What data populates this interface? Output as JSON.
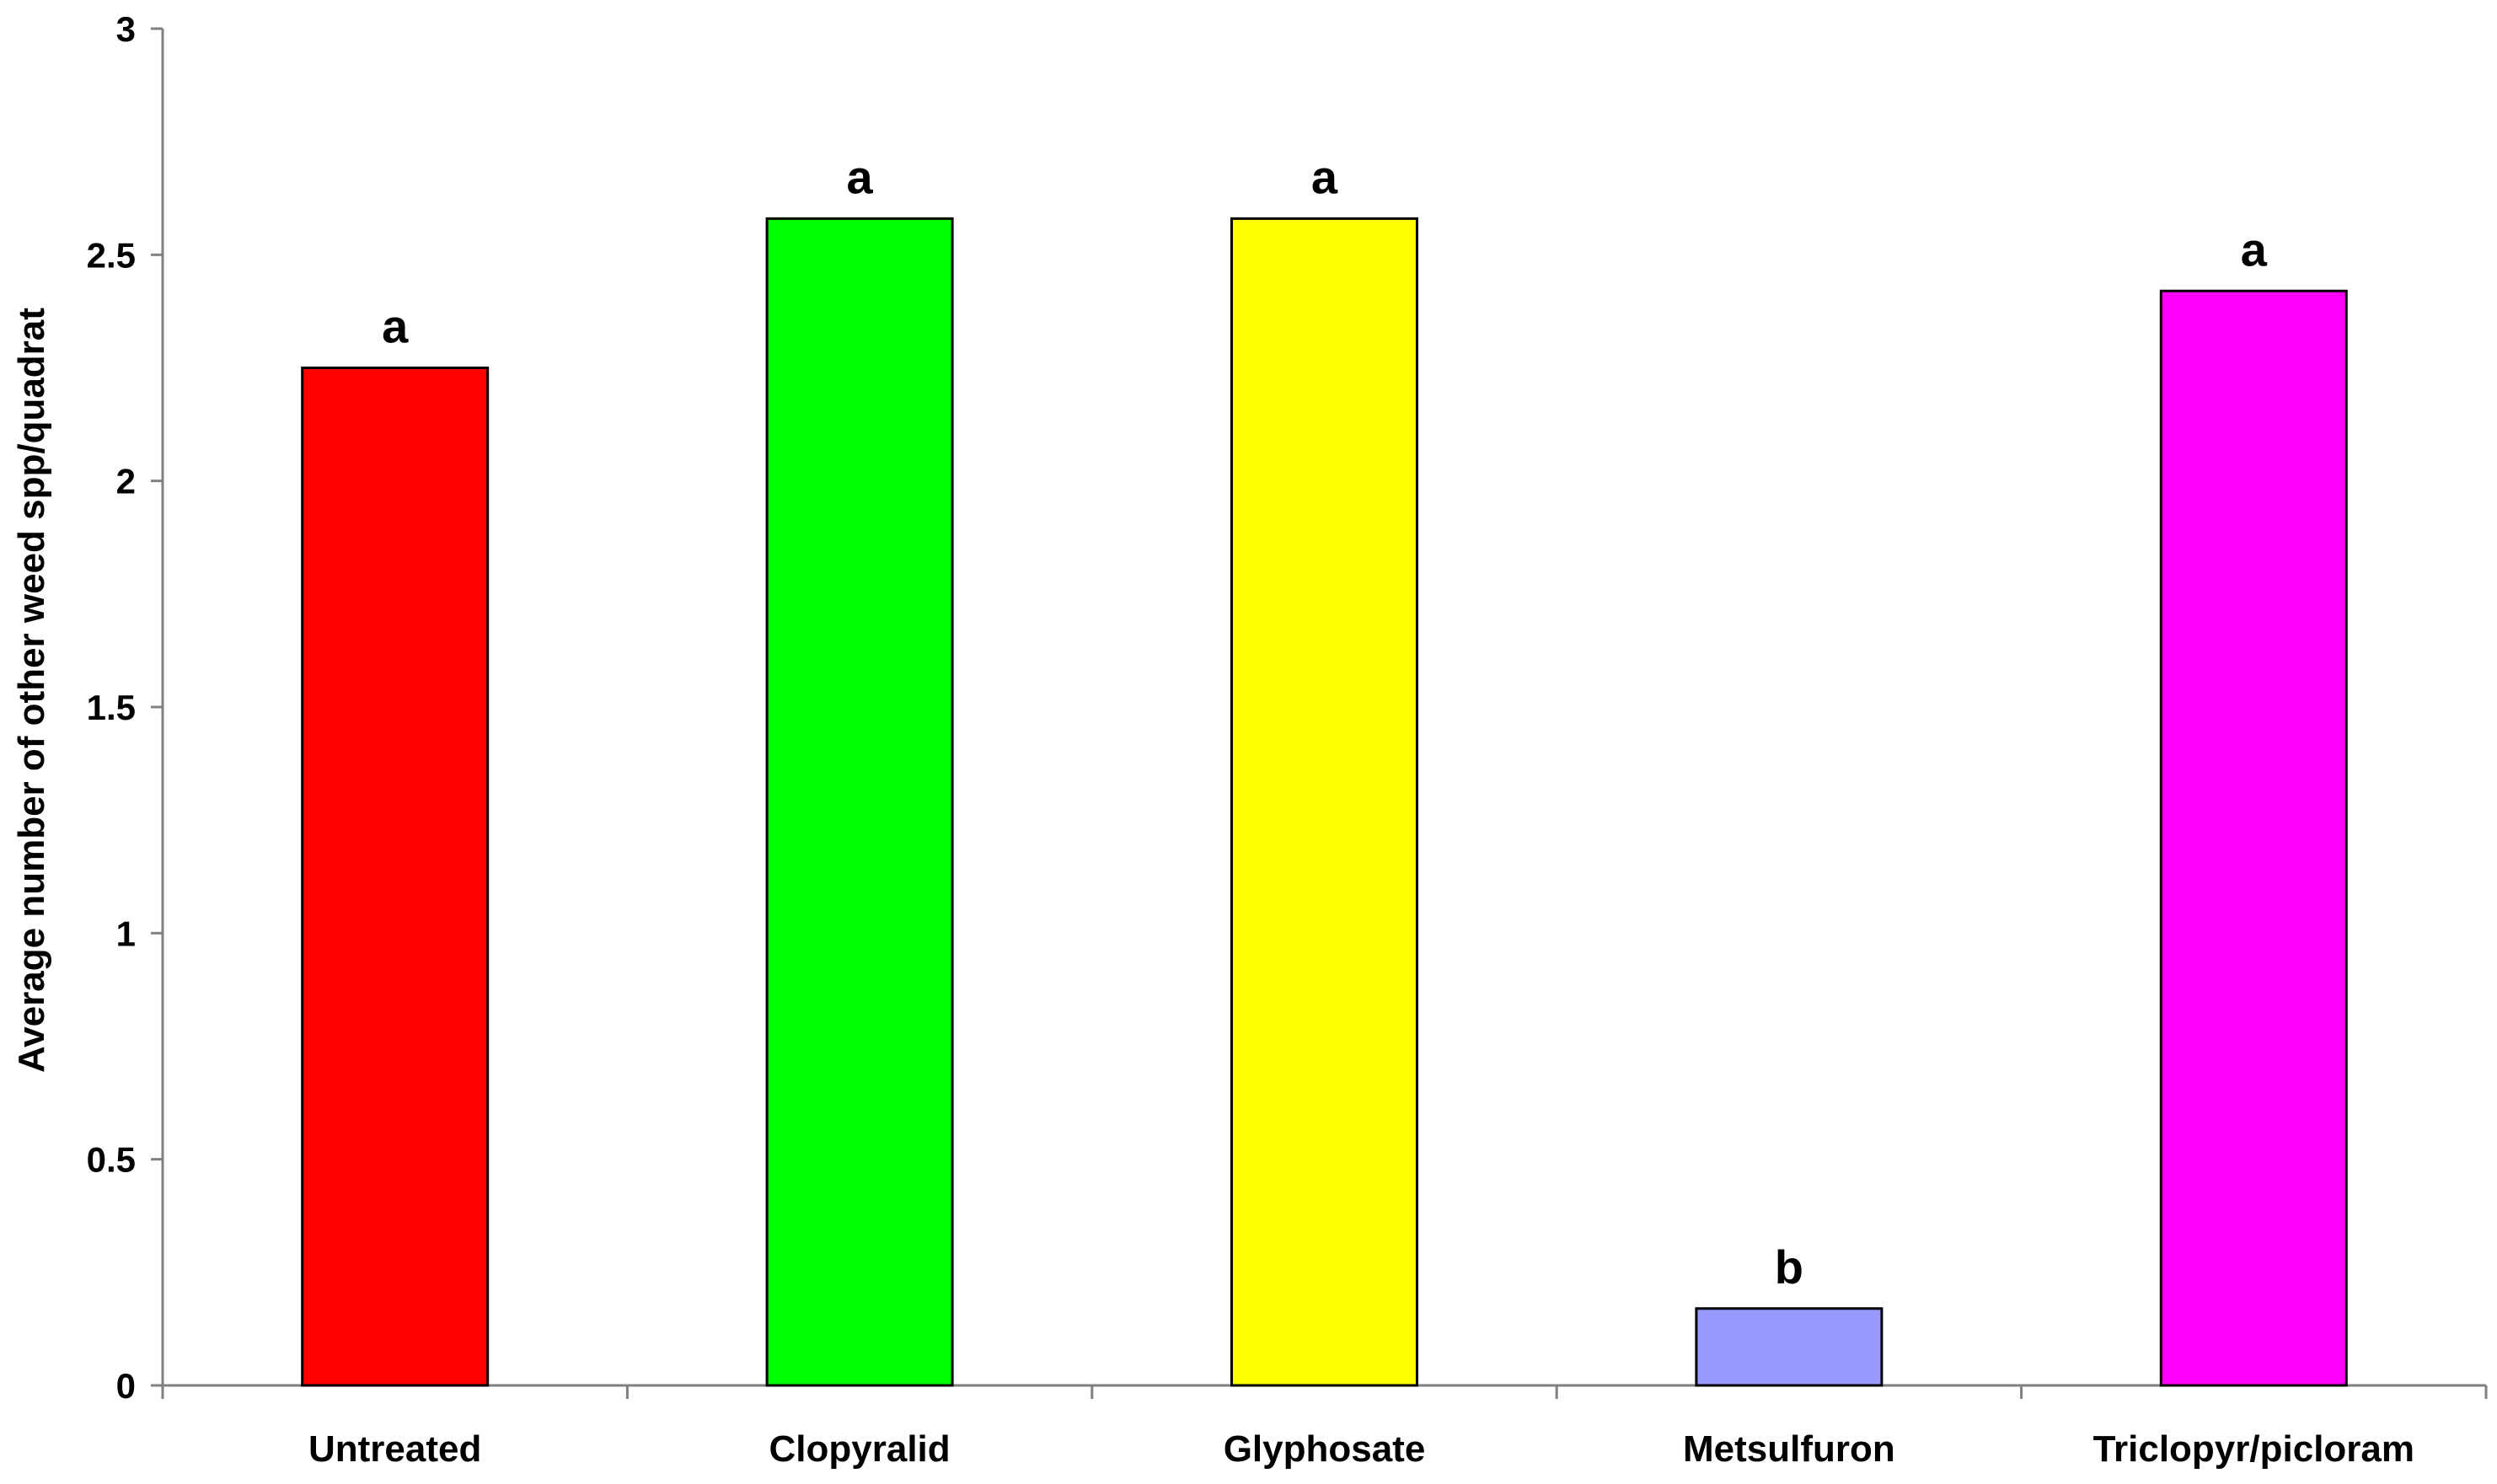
{
  "chart_data": {
    "type": "bar",
    "title": "",
    "xlabel": "",
    "ylabel": "Average number of other weed spp/quadrat",
    "ylim": [
      0,
      3
    ],
    "yticks": [
      0,
      0.5,
      1,
      1.5,
      2,
      2.5,
      3
    ],
    "ytick_labels": [
      "0",
      "0.5",
      "1",
      "1.5",
      "2",
      "2.5",
      "3"
    ],
    "grid": false,
    "legend": "none",
    "categories": [
      "Untreated",
      "Clopyralid",
      "Glyphosate",
      "Metsulfuron",
      "Triclopyr/picloram"
    ],
    "values": [
      2.25,
      2.58,
      2.58,
      0.17,
      2.42
    ],
    "significance_letters": [
      "a",
      "a",
      "a",
      "b",
      "a"
    ],
    "colors": [
      "#ff0000",
      "#00ff00",
      "#ffff00",
      "#9999ff",
      "#ff00ff"
    ]
  }
}
